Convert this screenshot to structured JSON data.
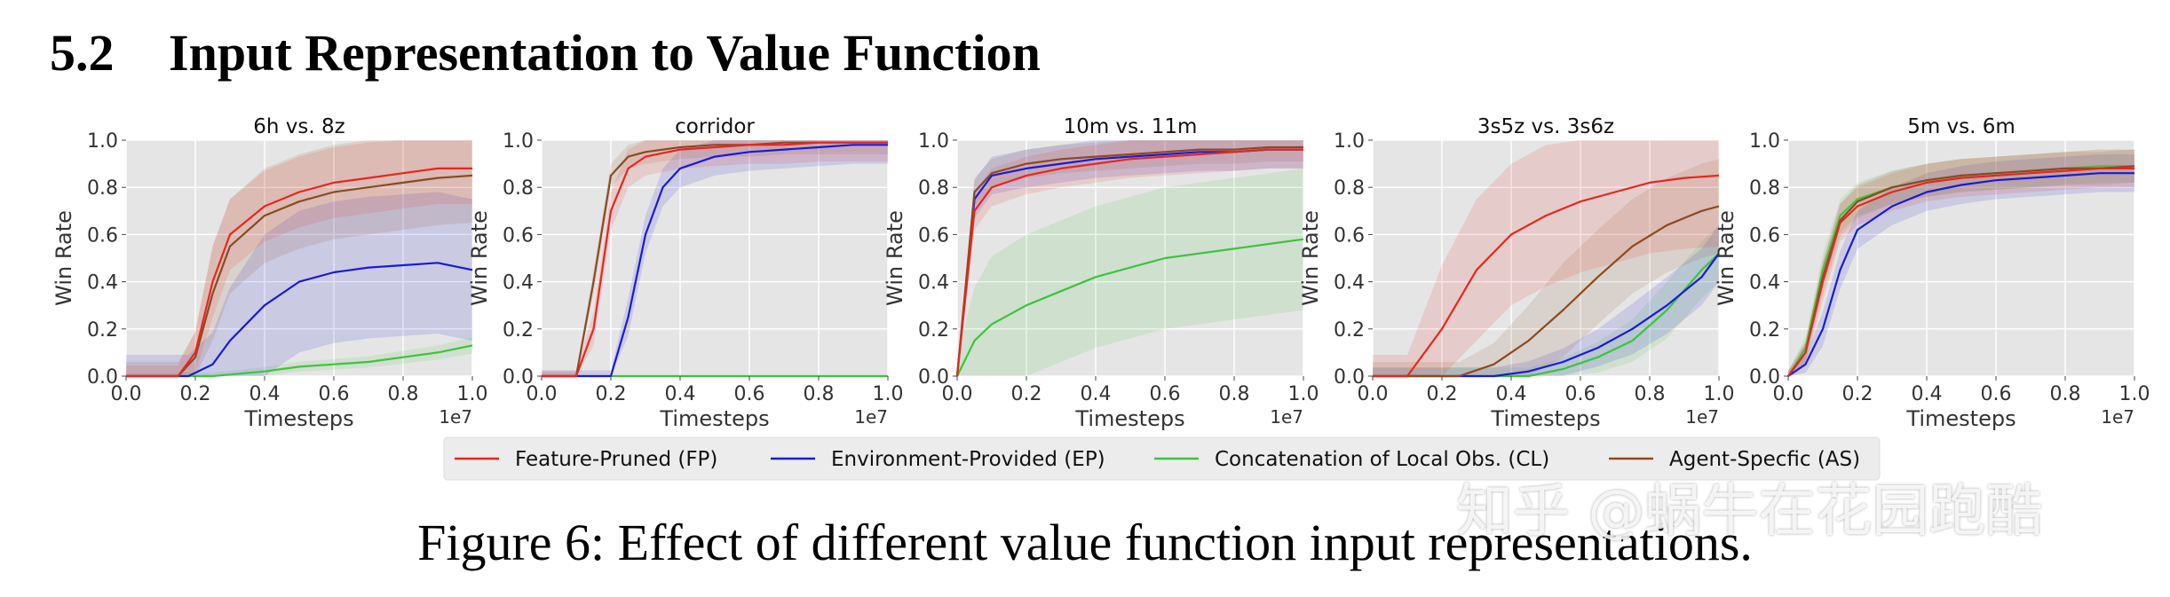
{
  "section": {
    "number": "5.2",
    "title": "Input Representation to Value Function"
  },
  "caption": "Figure 6: Effect of different value function input representations.",
  "watermark": "知乎 @蜗牛在花园跑酷",
  "colors": {
    "FP": "#e8261e",
    "EP": "#1a1ad6",
    "CL": "#3cc43c",
    "AS": "#8b4a22",
    "plot_bg": "#e5e5e5",
    "legend_bg": "#ececec"
  },
  "chart_data": [
    {
      "type": "line",
      "title": "6h vs. 8z",
      "xlabel": "Timesteps",
      "ylabel": "Win Rate",
      "xlim": [
        0,
        1.0
      ],
      "ylim": [
        0,
        1.0
      ],
      "x_offset_label": "1e7",
      "xticks": [
        "0.0",
        "0.2",
        "0.4",
        "0.6",
        "0.8",
        "1.0"
      ],
      "yticks": [
        "0.0",
        "0.2",
        "0.4",
        "0.6",
        "0.8",
        "1.0"
      ],
      "series": [
        {
          "name": "FP",
          "x": [
            0,
            0.15,
            0.2,
            0.25,
            0.3,
            0.4,
            0.5,
            0.6,
            0.7,
            0.8,
            0.9,
            1.0
          ],
          "y": [
            0,
            0,
            0.1,
            0.4,
            0.6,
            0.72,
            0.78,
            0.82,
            0.84,
            0.86,
            0.88,
            0.88
          ],
          "band": 0.15
        },
        {
          "name": "EP",
          "x": [
            0,
            0.18,
            0.25,
            0.3,
            0.4,
            0.5,
            0.6,
            0.7,
            0.8,
            0.9,
            1.0
          ],
          "y": [
            0,
            0,
            0.05,
            0.15,
            0.3,
            0.4,
            0.44,
            0.46,
            0.47,
            0.48,
            0.45
          ],
          "band": 0.3
        },
        {
          "name": "CL",
          "x": [
            0,
            0.25,
            0.4,
            0.5,
            0.6,
            0.7,
            0.8,
            0.9,
            1.0
          ],
          "y": [
            0,
            0,
            0.02,
            0.04,
            0.05,
            0.06,
            0.08,
            0.1,
            0.13
          ],
          "band": 0.05
        },
        {
          "name": "AS",
          "x": [
            0,
            0.15,
            0.2,
            0.25,
            0.3,
            0.4,
            0.5,
            0.6,
            0.7,
            0.8,
            0.9,
            1.0
          ],
          "y": [
            0,
            0,
            0.08,
            0.35,
            0.55,
            0.68,
            0.74,
            0.78,
            0.8,
            0.82,
            0.84,
            0.85
          ],
          "band": 0.2
        }
      ]
    },
    {
      "type": "line",
      "title": "corridor",
      "xlabel": "Timesteps",
      "ylabel": "Win Rate",
      "xlim": [
        0,
        1.0
      ],
      "ylim": [
        0,
        1.0
      ],
      "x_offset_label": "1e7",
      "xticks": [
        "0.0",
        "0.2",
        "0.4",
        "0.6",
        "0.8",
        "1.0"
      ],
      "yticks": [
        "0.0",
        "0.2",
        "0.4",
        "0.6",
        "0.8",
        "1.0"
      ],
      "series": [
        {
          "name": "FP",
          "x": [
            0,
            0.1,
            0.15,
            0.2,
            0.25,
            0.3,
            0.4,
            0.5,
            0.6,
            0.7,
            0.8,
            0.9,
            1.0
          ],
          "y": [
            0,
            0,
            0.2,
            0.7,
            0.88,
            0.93,
            0.96,
            0.97,
            0.98,
            0.98,
            0.99,
            0.99,
            0.99
          ],
          "band": 0.08
        },
        {
          "name": "EP",
          "x": [
            0,
            0.2,
            0.25,
            0.3,
            0.35,
            0.4,
            0.5,
            0.6,
            0.7,
            0.8,
            0.9,
            1.0
          ],
          "y": [
            0,
            0,
            0.25,
            0.6,
            0.8,
            0.88,
            0.93,
            0.95,
            0.96,
            0.97,
            0.98,
            0.98
          ],
          "band": 0.08
        },
        {
          "name": "CL",
          "x": [
            0,
            1.0
          ],
          "y": [
            0,
            0
          ],
          "band": 0.0
        },
        {
          "name": "AS",
          "x": [
            0,
            0.1,
            0.15,
            0.2,
            0.25,
            0.3,
            0.4,
            0.5,
            0.6,
            0.7,
            0.8,
            0.9,
            1.0
          ],
          "y": [
            0,
            0,
            0.4,
            0.85,
            0.93,
            0.95,
            0.97,
            0.98,
            0.98,
            0.99,
            0.99,
            0.99,
            0.99
          ],
          "band": 0.05
        }
      ]
    },
    {
      "type": "line",
      "title": "10m vs. 11m",
      "xlabel": "Timesteps",
      "ylabel": "Win Rate",
      "xlim": [
        0,
        1.0
      ],
      "ylim": [
        0,
        1.0
      ],
      "x_offset_label": "1e7",
      "xticks": [
        "0.0",
        "0.2",
        "0.4",
        "0.6",
        "0.8",
        "1.0"
      ],
      "yticks": [
        "0.0",
        "0.2",
        "0.4",
        "0.6",
        "0.8",
        "1.0"
      ],
      "series": [
        {
          "name": "FP",
          "x": [
            0,
            0.05,
            0.1,
            0.2,
            0.3,
            0.4,
            0.5,
            0.6,
            0.7,
            0.8,
            0.9,
            1.0
          ],
          "y": [
            0,
            0.7,
            0.8,
            0.85,
            0.88,
            0.9,
            0.92,
            0.93,
            0.94,
            0.95,
            0.96,
            0.96
          ],
          "band": 0.08
        },
        {
          "name": "EP",
          "x": [
            0,
            0.05,
            0.1,
            0.2,
            0.3,
            0.4,
            0.5,
            0.6,
            0.7,
            0.8,
            0.9,
            1.0
          ],
          "y": [
            0,
            0.75,
            0.85,
            0.88,
            0.9,
            0.92,
            0.93,
            0.94,
            0.95,
            0.95,
            0.96,
            0.96
          ],
          "band": 0.08
        },
        {
          "name": "CL",
          "x": [
            0,
            0.05,
            0.1,
            0.2,
            0.3,
            0.4,
            0.5,
            0.6,
            0.7,
            0.8,
            0.9,
            1.0
          ],
          "y": [
            0,
            0.15,
            0.22,
            0.3,
            0.36,
            0.42,
            0.46,
            0.5,
            0.52,
            0.54,
            0.56,
            0.58
          ],
          "band": 0.3
        },
        {
          "name": "AS",
          "x": [
            0,
            0.05,
            0.1,
            0.2,
            0.3,
            0.4,
            0.5,
            0.6,
            0.7,
            0.8,
            0.9,
            1.0
          ],
          "y": [
            0,
            0.78,
            0.86,
            0.9,
            0.92,
            0.93,
            0.94,
            0.95,
            0.96,
            0.96,
            0.97,
            0.97
          ],
          "band": 0.06
        }
      ]
    },
    {
      "type": "line",
      "title": "3s5z vs. 3s6z",
      "xlabel": "Timesteps",
      "ylabel": "Win Rate",
      "xlim": [
        0,
        1.0
      ],
      "ylim": [
        0,
        1.0
      ],
      "x_offset_label": "1e7",
      "xticks": [
        "0.0",
        "0.2",
        "0.4",
        "0.6",
        "0.8",
        "1.0"
      ],
      "yticks": [
        "0.0",
        "0.2",
        "0.4",
        "0.6",
        "0.8",
        "1.0"
      ],
      "series": [
        {
          "name": "FP",
          "x": [
            0,
            0.1,
            0.2,
            0.3,
            0.4,
            0.5,
            0.6,
            0.7,
            0.8,
            0.9,
            1.0
          ],
          "y": [
            0,
            0,
            0.2,
            0.45,
            0.6,
            0.68,
            0.74,
            0.78,
            0.82,
            0.84,
            0.85
          ],
          "band": 0.3
        },
        {
          "name": "EP",
          "x": [
            0,
            0.35,
            0.45,
            0.55,
            0.65,
            0.75,
            0.85,
            0.95,
            1.0
          ],
          "y": [
            0,
            0,
            0.02,
            0.06,
            0.12,
            0.2,
            0.3,
            0.42,
            0.52
          ],
          "band": 0.12
        },
        {
          "name": "CL",
          "x": [
            0,
            0.45,
            0.55,
            0.65,
            0.75,
            0.85,
            0.95,
            1.0
          ],
          "y": [
            0,
            0,
            0.03,
            0.08,
            0.15,
            0.28,
            0.45,
            0.52
          ],
          "band": 0.12
        },
        {
          "name": "AS",
          "x": [
            0,
            0.25,
            0.35,
            0.45,
            0.55,
            0.65,
            0.75,
            0.85,
            0.95,
            1.0
          ],
          "y": [
            0,
            0,
            0.05,
            0.15,
            0.28,
            0.42,
            0.55,
            0.64,
            0.7,
            0.72
          ],
          "band": 0.2
        }
      ]
    },
    {
      "type": "line",
      "title": "5m vs. 6m",
      "xlabel": "Timesteps",
      "ylabel": "Win Rate",
      "xlim": [
        0,
        1.0
      ],
      "ylim": [
        0,
        1.0
      ],
      "x_offset_label": "1e7",
      "xticks": [
        "0.0",
        "0.2",
        "0.4",
        "0.6",
        "0.8",
        "1.0"
      ],
      "yticks": [
        "0.0",
        "0.2",
        "0.4",
        "0.6",
        "0.8",
        "1.0"
      ],
      "series": [
        {
          "name": "FP",
          "x": [
            0,
            0.05,
            0.1,
            0.15,
            0.2,
            0.3,
            0.4,
            0.5,
            0.6,
            0.7,
            0.8,
            0.9,
            1.0
          ],
          "y": [
            0,
            0.1,
            0.4,
            0.65,
            0.72,
            0.78,
            0.82,
            0.84,
            0.85,
            0.86,
            0.87,
            0.88,
            0.88
          ],
          "band": 0.08
        },
        {
          "name": "EP",
          "x": [
            0,
            0.05,
            0.1,
            0.15,
            0.2,
            0.3,
            0.4,
            0.5,
            0.6,
            0.7,
            0.8,
            0.9,
            1.0
          ],
          "y": [
            0,
            0.05,
            0.2,
            0.45,
            0.62,
            0.72,
            0.78,
            0.81,
            0.83,
            0.84,
            0.85,
            0.86,
            0.86
          ],
          "band": 0.08
        },
        {
          "name": "CL",
          "x": [
            0,
            0.05,
            0.1,
            0.15,
            0.2,
            0.3,
            0.4,
            0.5,
            0.6,
            0.7,
            0.8,
            0.9,
            1.0
          ],
          "y": [
            0,
            0.12,
            0.45,
            0.68,
            0.75,
            0.8,
            0.83,
            0.85,
            0.86,
            0.87,
            0.88,
            0.89,
            0.89
          ],
          "band": 0.07
        },
        {
          "name": "AS",
          "x": [
            0,
            0.05,
            0.1,
            0.15,
            0.2,
            0.3,
            0.4,
            0.5,
            0.6,
            0.7,
            0.8,
            0.9,
            1.0
          ],
          "y": [
            0,
            0.1,
            0.42,
            0.66,
            0.74,
            0.8,
            0.83,
            0.85,
            0.86,
            0.87,
            0.88,
            0.88,
            0.89
          ],
          "band": 0.07
        }
      ]
    }
  ],
  "legend": [
    {
      "key": "FP",
      "label": "Feature-Pruned (FP)"
    },
    {
      "key": "EP",
      "label": "Environment-Provided (EP)"
    },
    {
      "key": "CL",
      "label": "Concatenation of Local Obs. (CL)"
    },
    {
      "key": "AS",
      "label": "Agent-Specfic (AS)"
    }
  ]
}
